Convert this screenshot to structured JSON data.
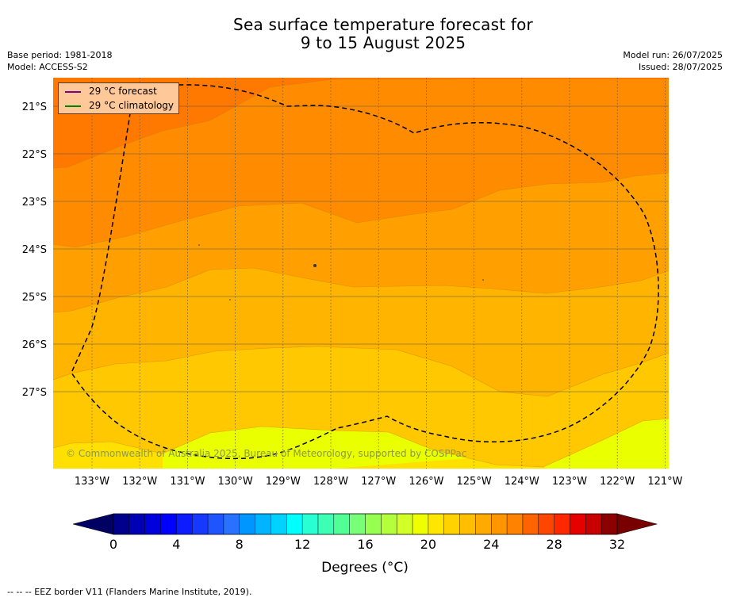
{
  "header": {
    "title_line1": "Sea surface temperature forecast for",
    "title_line2": "9 to 15 August 2025",
    "base_period": "Base period: 1981-2018",
    "model": "Model: ACCESS-S2",
    "model_run": "Model run: 26/07/2025",
    "issued": "Issued: 28/07/2025"
  },
  "legend": {
    "forecast_label": "29 °C  forecast",
    "forecast_color": "#800080",
    "climatology_label": "29 °C  climatology",
    "climatology_color": "#008000"
  },
  "map": {
    "lat_labels": [
      "21°S",
      "22°S",
      "23°S",
      "24°S",
      "25°S",
      "26°S",
      "27°S"
    ],
    "lon_labels": [
      "133°W",
      "132°W",
      "131°W",
      "130°W",
      "129°W",
      "128°W",
      "127°W",
      "126°W",
      "125°W",
      "124°W",
      "123°W",
      "122°W",
      "121°W"
    ],
    "copyright": "© Commonwealth of Australia 2025, Bureau of Meteorology, supported by COSPPac",
    "eez_style": "dashed black"
  },
  "colorbar": {
    "tick_labels": [
      "0",
      "4",
      "8",
      "12",
      "16",
      "20",
      "24",
      "28",
      "32"
    ],
    "title": "Degrees (°C)",
    "colors": [
      "#00008c",
      "#0000b4",
      "#0000dc",
      "#0000ff",
      "#0c1cff",
      "#1638ff",
      "#1f55ff",
      "#2872ff",
      "#0096ff",
      "#00b4ff",
      "#00d2ff",
      "#00ffff",
      "#28ffd2",
      "#3cffb4",
      "#50ff96",
      "#78ff78",
      "#96ff50",
      "#b4ff3c",
      "#d2ff28",
      "#f0ff00",
      "#ffe600",
      "#ffd200",
      "#ffbe00",
      "#ffaa00",
      "#ff9600",
      "#ff8200",
      "#ff6400",
      "#ff4600",
      "#ff2800",
      "#e60000",
      "#c80000",
      "#8c0000"
    ],
    "under_color": "#000064",
    "over_color": "#780000"
  },
  "footnote": "--  --  -- EEZ border V11 (Flanders Marine Institute, 2019)."
}
